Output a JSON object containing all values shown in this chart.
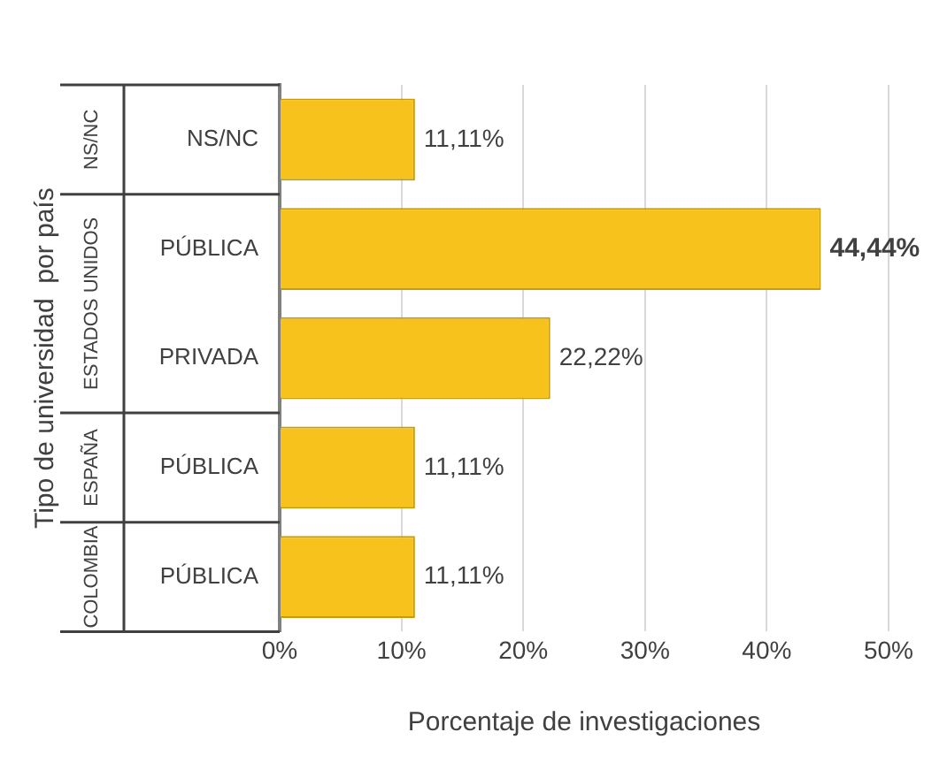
{
  "chart_data": {
    "type": "bar",
    "orientation": "horizontal",
    "xlabel": "Porcentaje de investigaciones",
    "ylabel": "Tipo de universidad  por país",
    "categories": [
      "NS/NC",
      "PÚBLICA",
      "PRIVADA",
      "PÚBLICA",
      "PÚBLICA"
    ],
    "values": [
      11.11,
      44.44,
      22.22,
      11.11,
      11.11
    ],
    "value_labels": [
      "11,11%",
      "44,44%",
      "22,22%",
      "11,11%",
      "11,11%"
    ],
    "color": "#f7c21b",
    "xlim": [
      0,
      50
    ],
    "xticks": [
      {
        "value": 0,
        "label": "0%"
      },
      {
        "value": 10,
        "label": "10%"
      },
      {
        "value": 20,
        "label": "20%"
      },
      {
        "value": 30,
        "label": "30%"
      },
      {
        "value": 40,
        "label": "40%"
      },
      {
        "value": 50,
        "label": "50%"
      }
    ],
    "grid": "x",
    "annotations": [
      "NS/NC",
      "ESTADOS UNIDOS",
      "ESPAÑA",
      "COLOMBIA"
    ]
  }
}
